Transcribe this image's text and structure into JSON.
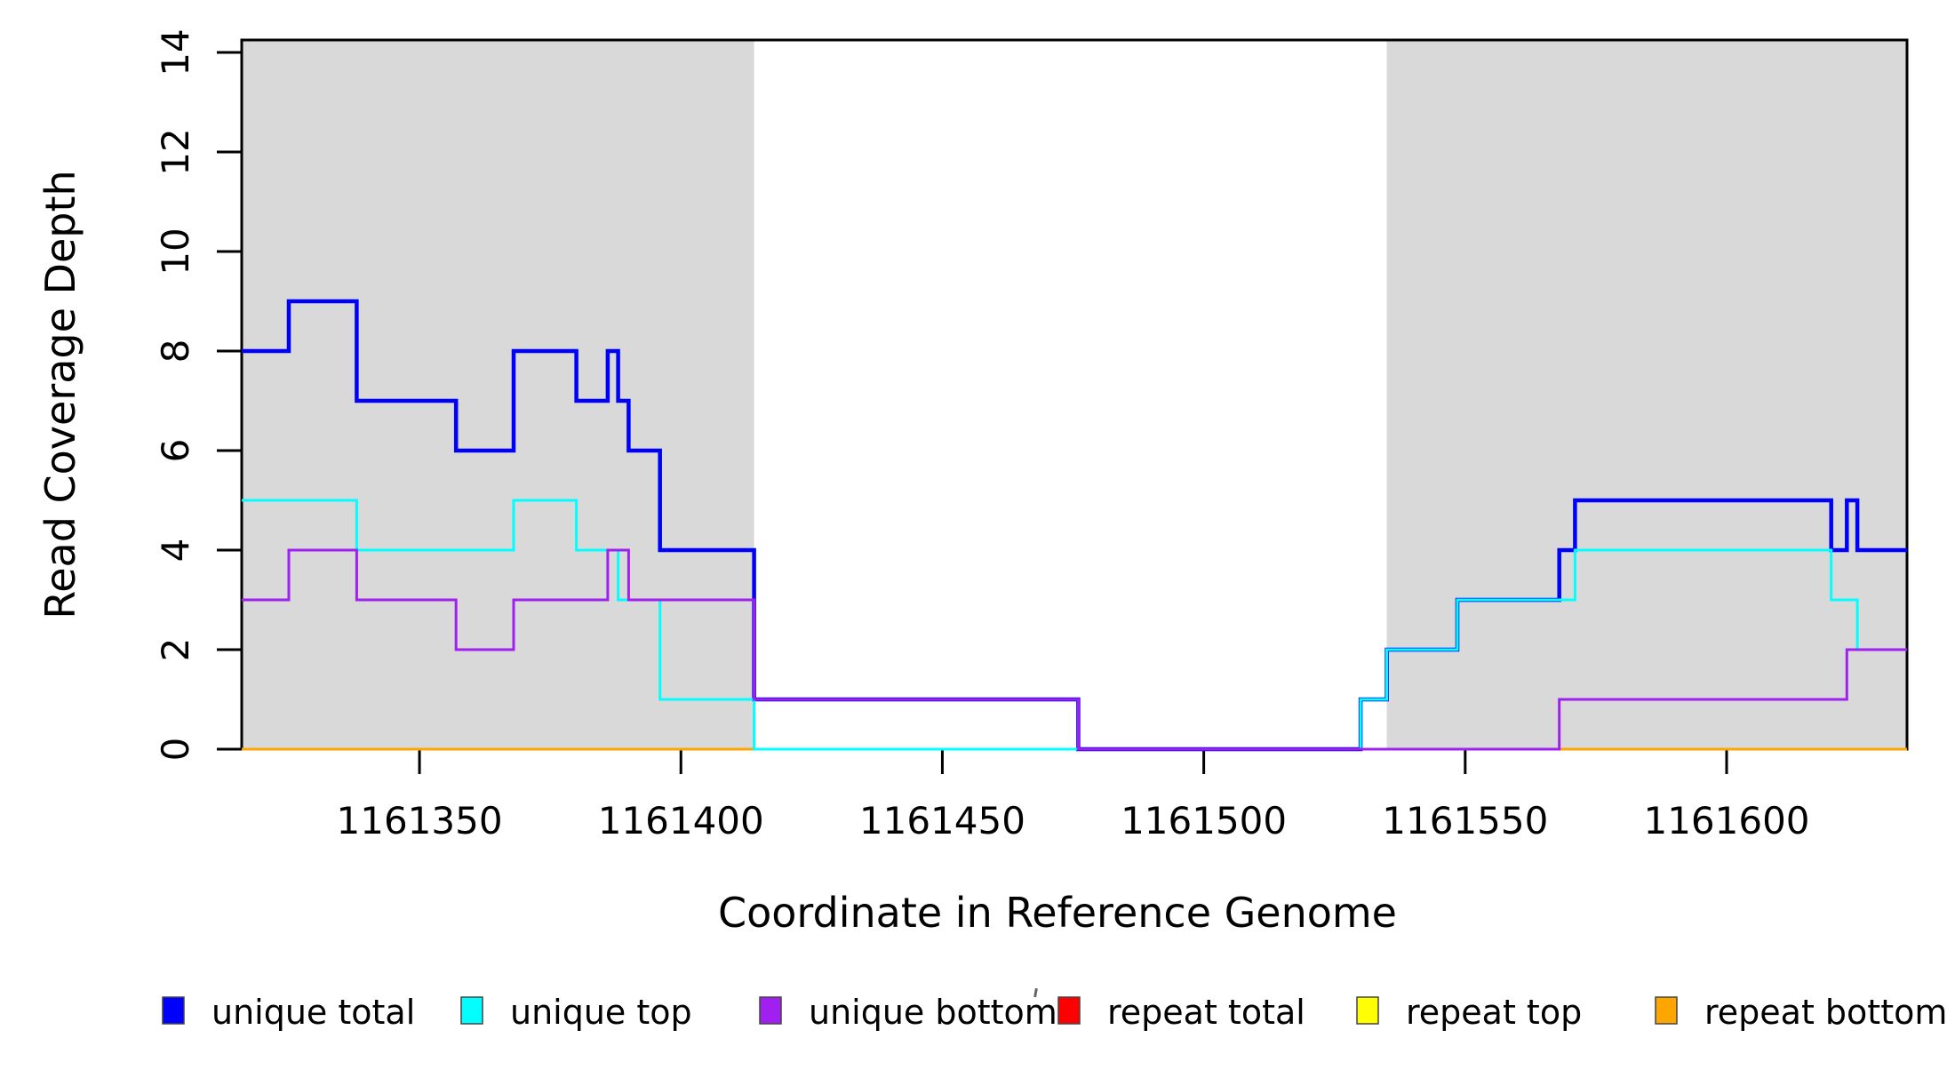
{
  "chart_data": {
    "type": "line",
    "step": true,
    "title": "",
    "xlabel": "Coordinate in Reference Genome",
    "ylabel": "Read Coverage Depth",
    "xlim": [
      1161316,
      1161634.5
    ],
    "ylim": [
      0,
      14.25
    ],
    "x_ticks": [
      1161350,
      1161400,
      1161450,
      1161500,
      1161550,
      1161600
    ],
    "y_ticks": [
      0,
      2,
      4,
      6,
      8,
      10,
      12,
      14
    ],
    "grid": false,
    "legend_position": "bottom",
    "shaded_x_bands": [
      {
        "x0": 1161316,
        "x1": 1161414,
        "color": "#D9D9D9"
      },
      {
        "x0": 1161535,
        "x1": 1161634.5,
        "color": "#D9D9D9"
      }
    ],
    "series": [
      {
        "name": "repeat total",
        "color": "#FF0000",
        "width": 3,
        "points": [
          [
            1161316,
            0
          ],
          [
            1161634.5,
            0
          ]
        ]
      },
      {
        "name": "repeat top",
        "color": "#FFFF00",
        "width": 3,
        "points": [
          [
            1161316,
            0
          ],
          [
            1161634.5,
            0
          ]
        ]
      },
      {
        "name": "repeat bottom",
        "color": "#FFA500",
        "width": 3,
        "points": [
          [
            1161316,
            0
          ],
          [
            1161634.5,
            0
          ]
        ]
      },
      {
        "name": "unique total",
        "color": "#0000FF",
        "width": 4.5,
        "points": [
          [
            1161316,
            8
          ],
          [
            1161325,
            9
          ],
          [
            1161338,
            7
          ],
          [
            1161357,
            6
          ],
          [
            1161368,
            8
          ],
          [
            1161380,
            7
          ],
          [
            1161386,
            8
          ],
          [
            1161388,
            7
          ],
          [
            1161390,
            6
          ],
          [
            1161396,
            4
          ],
          [
            1161414,
            1
          ],
          [
            1161476,
            0
          ],
          [
            1161530,
            1
          ],
          [
            1161535,
            2
          ],
          [
            1161548.5,
            3
          ],
          [
            1161568,
            4
          ],
          [
            1161571,
            5
          ],
          [
            1161620,
            4
          ],
          [
            1161623,
            5
          ],
          [
            1161625,
            4
          ],
          [
            1161634.5,
            4
          ]
        ]
      },
      {
        "name": "unique top",
        "color": "#00FFFF",
        "width": 3,
        "points": [
          [
            1161316,
            5
          ],
          [
            1161338,
            4
          ],
          [
            1161368,
            5
          ],
          [
            1161380,
            4
          ],
          [
            1161388,
            3
          ],
          [
            1161396,
            1
          ],
          [
            1161414,
            0
          ],
          [
            1161530,
            1
          ],
          [
            1161535,
            2
          ],
          [
            1161548.5,
            3
          ],
          [
            1161571,
            4
          ],
          [
            1161620,
            3
          ],
          [
            1161625,
            2
          ],
          [
            1161634.5,
            2
          ]
        ]
      },
      {
        "name": "unique bottom",
        "color": "#A020F0",
        "width": 3,
        "points": [
          [
            1161316,
            3
          ],
          [
            1161325,
            4
          ],
          [
            1161338,
            3
          ],
          [
            1161357,
            2
          ],
          [
            1161368,
            3
          ],
          [
            1161386,
            4
          ],
          [
            1161390,
            3
          ],
          [
            1161414,
            1
          ],
          [
            1161476,
            0
          ],
          [
            1161568,
            1
          ],
          [
            1161623,
            2
          ],
          [
            1161634.5,
            2
          ]
        ]
      }
    ]
  },
  "legend": {
    "items": [
      {
        "label": "unique total",
        "color": "#0000FF"
      },
      {
        "label": "unique top",
        "color": "#00FFFF"
      },
      {
        "label": "unique bottom",
        "color": "#A020F0"
      },
      {
        "label": "repeat total",
        "color": "#FF0000"
      },
      {
        "label": "repeat top",
        "color": "#FFFF00"
      },
      {
        "label": "repeat bottom",
        "color": "#FFA500"
      }
    ]
  },
  "colors": {
    "band": "#D9D9D9",
    "box": "#000000",
    "background": "#FFFFFF"
  }
}
